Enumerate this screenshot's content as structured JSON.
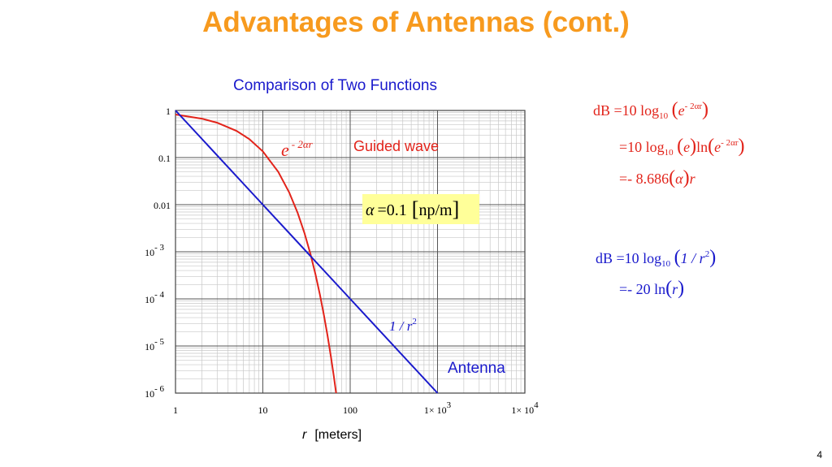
{
  "slide": {
    "title": "Advantages of Antennas (cont.)",
    "page_number": "4"
  },
  "chart_data": {
    "type": "line",
    "title": "Comparison of Two Functions",
    "xlabel_var": "r",
    "xlabel_unit": "[meters]",
    "xscale": "log",
    "yscale": "log",
    "xlim": [
      1,
      10000
    ],
    "ylim": [
      1e-06,
      1
    ],
    "grid": true,
    "x_ticks": [
      {
        "value": 1,
        "label": "1"
      },
      {
        "value": 10,
        "label": "10"
      },
      {
        "value": 100,
        "label": "100"
      },
      {
        "value": 1000,
        "label": "1× 10",
        "exp": "3"
      },
      {
        "value": 10000,
        "label": "1× 10",
        "exp": "4"
      }
    ],
    "y_ticks": [
      {
        "value": 1,
        "label": "1"
      },
      {
        "value": 0.1,
        "label": "0.1"
      },
      {
        "value": 0.01,
        "label": "0.01"
      },
      {
        "value": 0.001,
        "label": "10",
        "exp": "- 3"
      },
      {
        "value": 0.0001,
        "label": "10",
        "exp": "- 4"
      },
      {
        "value": 1e-05,
        "label": "10",
        "exp": "- 5"
      },
      {
        "value": 1e-06,
        "label": "10",
        "exp": "- 6"
      }
    ],
    "series": [
      {
        "name": "e^(-2αr)",
        "color": "#e2231a",
        "x": [
          1,
          2,
          3,
          5,
          7,
          10,
          15,
          20,
          25,
          30,
          35,
          40,
          45,
          50,
          55,
          60,
          65,
          69
        ],
        "y": [
          0.8187,
          0.6703,
          0.5488,
          0.3679,
          0.2466,
          0.1353,
          0.04979,
          0.01832,
          0.006738,
          0.002479,
          0.000912,
          0.0003355,
          0.0001234,
          4.54e-05,
          1.67e-05,
          6.14e-06,
          2.26e-06,
          1e-06
        ]
      },
      {
        "name": "1/r²",
        "color": "#1a1acc",
        "x": [
          1,
          10,
          100,
          1000
        ],
        "y": [
          1,
          0.01,
          0.0001,
          1e-06
        ]
      }
    ],
    "annotations": {
      "red_curve_label": {
        "base": "e",
        "exp": "- 2αr"
      },
      "guided_wave": "Guided wave",
      "alpha_box": {
        "symbol": "α",
        "eq": "=0.1",
        "unit": "np/m",
        "bg": "#ffff99"
      },
      "blue_curve_label": {
        "text": "1 / r",
        "exp": "2"
      },
      "antenna": "Antenna"
    }
  },
  "equations": {
    "red": {
      "line1": {
        "lhs": "dB =10 log",
        "sub": "10",
        "base": "e",
        "exp": "- 2αr"
      },
      "line2": {
        "lhs": "=10 log",
        "sub": "10",
        "arg": "e",
        "ln": "ln",
        "base": "e",
        "exp": "- 2αr"
      },
      "line3": {
        "lhs": "=- 8.686",
        "arg": "α",
        "tail": "r"
      }
    },
    "blue": {
      "line1": {
        "lhs": "dB =10 log",
        "sub": "10",
        "arg": "1 / r",
        "exp": "2"
      },
      "line2": {
        "lhs": "=- 20 ln",
        "arg": "r"
      }
    }
  },
  "colors": {
    "title": "#f79a1e",
    "red": "#e2231a",
    "blue": "#1a1acc",
    "grid": "#c8c8c8",
    "grid_major": "#555555"
  }
}
